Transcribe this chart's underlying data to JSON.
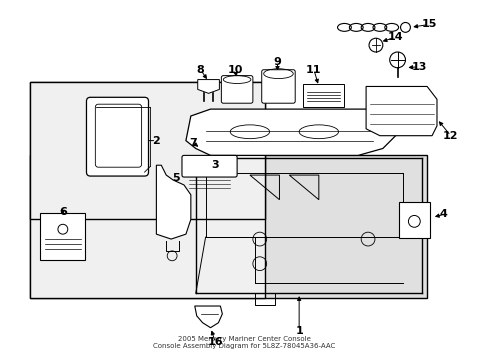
{
  "bg_color": "#ffffff",
  "border_color": "#000000",
  "shade_color": "#e0e0e0",
  "lw": 0.8,
  "fs": 8,
  "title": "2005 Mercury Mariner Center Console\nConsole Assembly Diagram for 5L8Z-78045A36-AAC"
}
